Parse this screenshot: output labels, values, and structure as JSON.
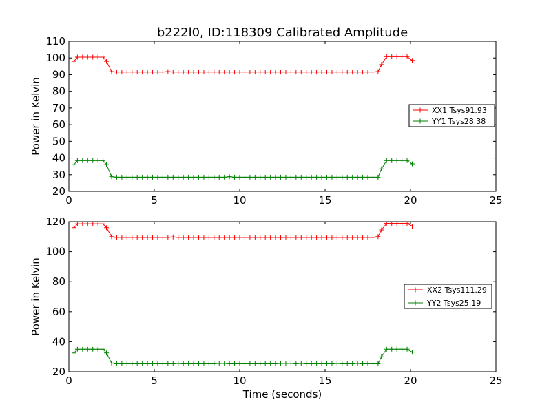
{
  "title": "b222l0, ID:118309 Calibrated Amplitude",
  "xlabel": "Time (seconds)",
  "chart_data": [
    {
      "type": "line",
      "ylabel": "Power in Kelvin",
      "xlim": [
        0,
        25
      ],
      "ylim": [
        20,
        110
      ],
      "xticks": [
        0,
        5,
        10,
        15,
        20,
        25
      ],
      "yticks": [
        20,
        30,
        40,
        50,
        60,
        70,
        80,
        90,
        100,
        110
      ],
      "legend_position": "right",
      "series": [
        {
          "name": "XX1 Tsys91.93",
          "color": "#ff0000",
          "marker": "+",
          "x": [
            0.3,
            0.5,
            0.8,
            1.1,
            1.4,
            1.7,
            2.0,
            2.2,
            2.5,
            2.8,
            3.1,
            3.4,
            3.7,
            4.0,
            4.3,
            4.6,
            4.9,
            5.2,
            5.5,
            5.8,
            6.1,
            6.4,
            6.7,
            7.0,
            7.3,
            7.6,
            7.9,
            8.2,
            8.5,
            8.8,
            9.1,
            9.4,
            9.7,
            10.0,
            10.3,
            10.6,
            10.9,
            11.2,
            11.5,
            11.8,
            12.1,
            12.4,
            12.7,
            13.0,
            13.3,
            13.6,
            13.9,
            14.2,
            14.5,
            14.8,
            15.1,
            15.4,
            15.7,
            16.0,
            16.3,
            16.6,
            16.9,
            17.2,
            17.5,
            17.8,
            18.1,
            18.3,
            18.6,
            18.9,
            19.2,
            19.5,
            19.8,
            20.1
          ],
          "y": [
            98,
            100.5,
            100.5,
            100.5,
            100.5,
            100.5,
            100.5,
            98,
            91.8,
            91.6,
            91.6,
            91.6,
            91.6,
            91.6,
            91.6,
            91.6,
            91.6,
            91.6,
            91.6,
            91.8,
            91.6,
            91.6,
            91.6,
            91.6,
            91.6,
            91.6,
            91.6,
            91.6,
            91.6,
            91.6,
            91.6,
            91.6,
            91.6,
            91.6,
            91.6,
            91.6,
            91.6,
            91.6,
            91.6,
            91.6,
            91.6,
            91.6,
            91.6,
            91.6,
            91.6,
            91.6,
            91.6,
            91.6,
            91.6,
            91.6,
            91.6,
            91.6,
            91.6,
            91.6,
            91.6,
            91.6,
            91.6,
            91.6,
            91.6,
            91.6,
            91.8,
            96,
            100.8,
            100.8,
            100.8,
            100.8,
            100.8,
            98.5
          ]
        },
        {
          "name": "YY1 Tsys28.38",
          "color": "#008000",
          "marker": "+",
          "x": [
            0.3,
            0.5,
            0.8,
            1.1,
            1.4,
            1.7,
            2.0,
            2.2,
            2.5,
            2.8,
            3.1,
            3.4,
            3.7,
            4.0,
            4.3,
            4.6,
            4.9,
            5.2,
            5.5,
            5.8,
            6.1,
            6.4,
            6.7,
            7.0,
            7.3,
            7.6,
            7.9,
            8.2,
            8.5,
            8.8,
            9.1,
            9.4,
            9.7,
            10.0,
            10.3,
            10.6,
            10.9,
            11.2,
            11.5,
            11.8,
            12.1,
            12.4,
            12.7,
            13.0,
            13.3,
            13.6,
            13.9,
            14.2,
            14.5,
            14.8,
            15.1,
            15.4,
            15.7,
            16.0,
            16.3,
            16.6,
            16.9,
            17.2,
            17.5,
            17.8,
            18.1,
            18.3,
            18.6,
            18.9,
            19.2,
            19.5,
            19.8,
            20.1
          ],
          "y": [
            36,
            38.5,
            38.5,
            38.5,
            38.5,
            38.5,
            38.5,
            36,
            28.8,
            28.5,
            28.5,
            28.5,
            28.5,
            28.5,
            28.5,
            28.5,
            28.5,
            28.5,
            28.5,
            28.5,
            28.5,
            28.5,
            28.5,
            28.5,
            28.5,
            28.5,
            28.5,
            28.5,
            28.5,
            28.5,
            28.5,
            28.8,
            28.5,
            28.5,
            28.5,
            28.5,
            28.5,
            28.5,
            28.5,
            28.5,
            28.5,
            28.5,
            28.5,
            28.5,
            28.5,
            28.5,
            28.5,
            28.5,
            28.5,
            28.5,
            28.5,
            28.5,
            28.5,
            28.5,
            28.5,
            28.5,
            28.5,
            28.5,
            28.5,
            28.5,
            28.5,
            33.5,
            38.5,
            38.5,
            38.5,
            38.5,
            38.5,
            36.5
          ]
        }
      ]
    },
    {
      "type": "line",
      "ylabel": "Power in Kelvin",
      "xlabel": "Time (seconds)",
      "xlim": [
        0,
        25
      ],
      "ylim": [
        20,
        120
      ],
      "xticks": [
        0,
        5,
        10,
        15,
        20,
        25
      ],
      "yticks": [
        20,
        40,
        60,
        80,
        100,
        120
      ],
      "legend_position": "right",
      "series": [
        {
          "name": "XX2 Tsys111.29",
          "color": "#ff0000",
          "marker": "+",
          "x": [
            0.3,
            0.5,
            0.8,
            1.1,
            1.4,
            1.7,
            2.0,
            2.2,
            2.5,
            2.8,
            3.1,
            3.4,
            3.7,
            4.0,
            4.3,
            4.6,
            4.9,
            5.2,
            5.5,
            5.8,
            6.1,
            6.4,
            6.7,
            7.0,
            7.3,
            7.6,
            7.9,
            8.2,
            8.5,
            8.8,
            9.1,
            9.4,
            9.7,
            10.0,
            10.3,
            10.6,
            10.9,
            11.2,
            11.5,
            11.8,
            12.1,
            12.4,
            12.7,
            13.0,
            13.3,
            13.6,
            13.9,
            14.2,
            14.5,
            14.8,
            15.1,
            15.4,
            15.7,
            16.0,
            16.3,
            16.6,
            16.9,
            17.2,
            17.5,
            17.8,
            18.1,
            18.3,
            18.6,
            18.9,
            19.2,
            19.5,
            19.8,
            20.1
          ],
          "y": [
            116,
            118.5,
            118.5,
            118.5,
            118.5,
            118.5,
            118.5,
            116,
            110,
            109.5,
            109.5,
            109.5,
            109.5,
            109.5,
            109.5,
            109.5,
            109.5,
            109.5,
            109.5,
            109.5,
            109.8,
            109.5,
            109.5,
            109.5,
            109.5,
            109.5,
            109.5,
            109.5,
            109.5,
            109.5,
            109.5,
            109.5,
            109.5,
            109.5,
            109.5,
            109.5,
            109.5,
            109.5,
            109.5,
            109.5,
            109.5,
            109.5,
            109.5,
            109.5,
            109.5,
            109.5,
            109.5,
            109.5,
            109.5,
            109.5,
            109.5,
            109.5,
            109.5,
            109.5,
            109.5,
            109.5,
            109.5,
            109.5,
            109.5,
            109.5,
            110,
            114.5,
            118.8,
            118.8,
            118.8,
            118.8,
            118.8,
            117
          ]
        },
        {
          "name": "YY2 Tsys25.19",
          "color": "#008000",
          "marker": "+",
          "x": [
            0.3,
            0.5,
            0.8,
            1.1,
            1.4,
            1.7,
            2.0,
            2.2,
            2.5,
            2.8,
            3.1,
            3.4,
            3.7,
            4.0,
            4.3,
            4.6,
            4.9,
            5.2,
            5.5,
            5.8,
            6.1,
            6.4,
            6.7,
            7.0,
            7.3,
            7.6,
            7.9,
            8.2,
            8.5,
            8.8,
            9.1,
            9.4,
            9.7,
            10.0,
            10.3,
            10.6,
            10.9,
            11.2,
            11.5,
            11.8,
            12.1,
            12.4,
            12.7,
            13.0,
            13.3,
            13.6,
            13.9,
            14.2,
            14.5,
            14.8,
            15.1,
            15.4,
            15.7,
            16.0,
            16.3,
            16.6,
            16.9,
            17.2,
            17.5,
            17.8,
            18.1,
            18.3,
            18.6,
            18.9,
            19.2,
            19.5,
            19.8,
            20.1
          ],
          "y": [
            32.5,
            35,
            35,
            35,
            35,
            35,
            35,
            32.5,
            25.8,
            25.3,
            25.3,
            25.3,
            25.3,
            25.3,
            25.3,
            25.3,
            25.3,
            25.3,
            25.3,
            25.3,
            25.3,
            25.5,
            25.3,
            25.3,
            25.3,
            25.3,
            25.3,
            25.3,
            25.3,
            25.5,
            25.5,
            25.3,
            25.3,
            25.3,
            25.3,
            25.3,
            25.3,
            25.3,
            25.3,
            25.3,
            25.3,
            25.5,
            25.5,
            25.5,
            25.3,
            25.5,
            25.3,
            25.3,
            25.3,
            25.3,
            25.3,
            25.3,
            25.5,
            25.3,
            25.3,
            25.3,
            25.5,
            25.3,
            25.3,
            25.3,
            25.3,
            30,
            35,
            35,
            35,
            35,
            35,
            33
          ]
        }
      ]
    }
  ]
}
